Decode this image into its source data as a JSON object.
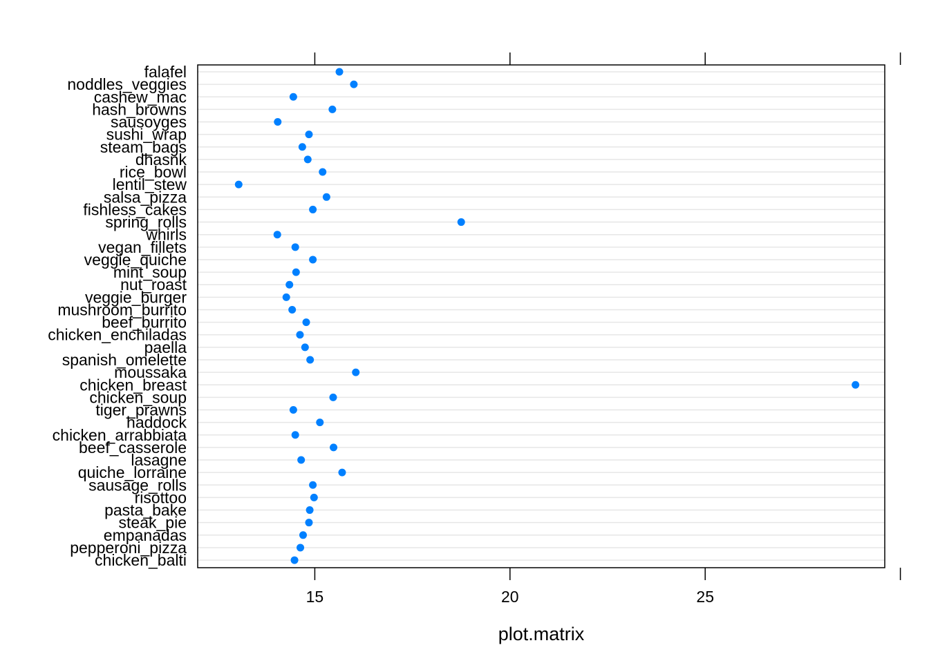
{
  "chart_data": {
    "type": "scatter",
    "xlabel": "plot.matrix",
    "ylabel": "",
    "xlim": [
      12.0,
      29.6
    ],
    "xticks": [
      15,
      20,
      25
    ],
    "xtick_labels": [
      "15",
      "20",
      "25"
    ],
    "grid": true,
    "point_color": "#0080ff",
    "grid_color": "#e6e6e6",
    "categories": [
      "falafel",
      "noddles_veggies",
      "cashew_mac",
      "hash_browns",
      "sausoyges",
      "sushi_wrap",
      "steam_bags",
      "dhasnk",
      "rice_bowl",
      "lentil_stew",
      "salsa_pizza",
      "fishless_cakes",
      "spring_rolls",
      "whirls",
      "vegan_fillets",
      "veggie_quiche",
      "mint_soup",
      "nut_roast",
      "veggie_burger",
      "mushroom_burrito",
      "beef_burrito",
      "chicken_enchiladas",
      "paella",
      "spanish_omelette",
      "moussaka",
      "chicken_breast",
      "chicken_soup",
      "tiger_prawns",
      "haddock",
      "chicken_arrabbiata",
      "beef_casserole",
      "lasagne",
      "quiche_lorraine",
      "sausage_rolls",
      "risottoo",
      "pasta_bake",
      "steak_pie",
      "empanadas",
      "pepperoni_pizza",
      "chicken_balti"
    ],
    "values": [
      15.63,
      16.0,
      14.45,
      15.45,
      14.05,
      14.85,
      14.68,
      14.82,
      15.2,
      13.05,
      15.3,
      14.95,
      18.75,
      14.04,
      14.5,
      14.95,
      14.52,
      14.35,
      14.27,
      14.42,
      14.78,
      14.62,
      14.75,
      14.88,
      16.05,
      28.85,
      15.47,
      14.45,
      15.13,
      14.5,
      15.48,
      14.65,
      15.7,
      14.95,
      14.98,
      14.87,
      14.85,
      14.7,
      14.63,
      14.48
    ]
  }
}
